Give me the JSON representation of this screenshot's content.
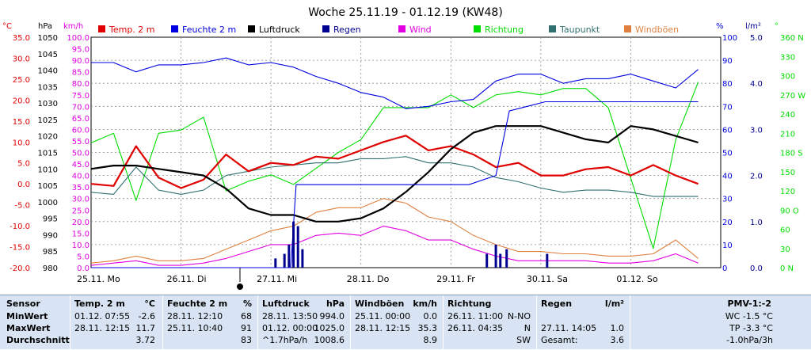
{
  "title": "Woche 25.11.19 - 01.12.19 (KW48)",
  "colors": {
    "temp": "#e00000",
    "humidity": "#0000e0",
    "pressure": "#000000",
    "rain": "#000090",
    "wind": "#e000e0",
    "direction": "#00dd00",
    "dewpoint": "#307070",
    "gust": "#e08040",
    "grid": "#8a8a8a"
  },
  "axes": {
    "temp_unit": "°C",
    "pressure_unit": "hPa",
    "wind_unit": "km/h",
    "humidity_unit": "%",
    "rain_unit": "l/m²",
    "direction_unit": "°",
    "temp_ticks": [
      "35.0",
      "30.0",
      "25.0",
      "20.0",
      "15.0",
      "10.0",
      "5.0",
      "0.0",
      "-5.0",
      "-10.0",
      "-15.0",
      "-20.0"
    ],
    "pressure_ticks": [
      "1050",
      "1045",
      "1040",
      "1035",
      "1030",
      "1025",
      "1020",
      "1015",
      "1010",
      "1005",
      "1000",
      "995",
      "990",
      "985",
      "980"
    ],
    "wind_ticks": [
      "100.0",
      "95.0",
      "90.0",
      "85.0",
      "80.0",
      "75.0",
      "70.0",
      "65.0",
      "60.0",
      "55.0",
      "50.0",
      "45.0",
      "40.0",
      "35.0",
      "30.0",
      "25.0",
      "20.0",
      "15.0",
      "10.0",
      "5.0",
      "0.0"
    ],
    "humidity_ticks": [
      "100",
      "90",
      "80",
      "70",
      "60",
      "50",
      "40",
      "30",
      "20",
      "10",
      "0"
    ],
    "rain_ticks": [
      "5.0",
      "4.0",
      "3.0",
      "2.0",
      "1.0",
      "0.0"
    ],
    "direction_ticks": [
      "360 N",
      "330",
      "300",
      "270 W",
      "240",
      "210",
      "180 S",
      "150",
      "120",
      "90 O",
      "60",
      "30",
      "0 N"
    ],
    "day_labels": [
      "25.11. Mo",
      "26.11. Di",
      "27.11. Mi",
      "28.11. Do",
      "29.11. Fr",
      "30.11. Sa",
      "01.12. So"
    ]
  },
  "legend": [
    {
      "label": "Temp. 2 m",
      "color": "#e00000"
    },
    {
      "label": "Feuchte  2 m",
      "color": "#0000e0"
    },
    {
      "label": "Luftdruck",
      "color": "#000000"
    },
    {
      "label": "Regen",
      "color": "#000090"
    },
    {
      "label": "Wind",
      "color": "#e000e0"
    },
    {
      "label": "Richtung",
      "color": "#00dd00"
    },
    {
      "label": "Taupunkt",
      "color": "#307070"
    },
    {
      "label": "Windböen",
      "color": "#e08040"
    }
  ],
  "chart_data": {
    "type": "line",
    "title": "Woche 25.11.19 - 01.12.19 (KW48)",
    "x": [
      0,
      0.25,
      0.5,
      0.75,
      1,
      1.25,
      1.5,
      1.75,
      2,
      2.25,
      2.5,
      2.75,
      3,
      3.25,
      3.5,
      3.75,
      4,
      4.25,
      4.5,
      4.75,
      5,
      5.25,
      5.5,
      5.75,
      6,
      6.25,
      6.5,
      6.75
    ],
    "xlabels": [
      "25.11. Mo",
      "26.11. Di",
      "27.11. Mi",
      "28.11. Do",
      "29.11. Fr",
      "30.11. Sa",
      "01.12. So"
    ],
    "series": [
      {
        "name": "Temp. 2 m",
        "unit": "°C",
        "values": [
          0,
          -0.5,
          9,
          1.5,
          -1,
          1,
          7,
          3,
          5,
          4.5,
          6.5,
          6,
          8,
          10,
          11.5,
          8,
          9,
          7,
          4,
          5,
          2,
          2,
          3.5,
          4,
          2,
          4.5,
          2,
          0
        ]
      },
      {
        "name": "Feuchte  2 m",
        "unit": "%",
        "values": [
          89,
          89,
          85,
          88,
          88,
          89,
          91,
          88,
          89,
          87,
          83,
          80,
          76,
          74,
          69,
          70,
          72,
          73,
          81,
          84,
          84,
          80,
          82,
          82,
          84,
          81,
          78,
          86
        ]
      },
      {
        "name": "Luftdruck",
        "unit": "hPa",
        "values": [
          1010,
          1011,
          1011,
          1010,
          1009,
          1008,
          1004,
          998,
          996,
          996,
          994,
          994,
          995,
          998,
          1003,
          1009,
          1016,
          1021,
          1023,
          1023,
          1023,
          1021,
          1019,
          1018,
          1023,
          1022,
          1020,
          1018
        ]
      },
      {
        "name": "Wind",
        "unit": "km/h",
        "values": [
          1,
          2,
          3,
          1,
          1,
          2,
          4,
          7,
          10,
          10,
          14,
          15,
          14,
          18,
          16,
          12,
          12,
          8,
          5,
          3,
          3,
          3,
          3,
          2,
          2,
          3,
          6,
          2
        ]
      },
      {
        "name": "Richtung",
        "unit": "°",
        "values": [
          195,
          210,
          105,
          210,
          215,
          235,
          120,
          135,
          145,
          130,
          155,
          180,
          200,
          250,
          250,
          250,
          270,
          250,
          270,
          275,
          270,
          280,
          280,
          250,
          140,
          30,
          200,
          290
        ]
      },
      {
        "name": "Taupunkt",
        "unit": "°C",
        "values": [
          -2,
          -2.5,
          4,
          -1.5,
          -2.5,
          -1.5,
          2,
          3,
          4,
          4.5,
          5,
          5,
          6,
          6,
          6.5,
          5,
          5,
          4,
          1.5,
          0.5,
          -1,
          -2,
          -1.5,
          -1.5,
          -2,
          -3,
          -3,
          -3
        ]
      },
      {
        "name": "Windböen",
        "unit": "km/h",
        "values": [
          2,
          3,
          5,
          3,
          3,
          4,
          8,
          12,
          16,
          18,
          24,
          26,
          26,
          30,
          28,
          22,
          20,
          14,
          10,
          7,
          7,
          6,
          6,
          5,
          5,
          6,
          12,
          4
        ]
      },
      {
        "name": "Regen",
        "unit": "l/m²",
        "bars": [
          [
            2.05,
            0.2
          ],
          [
            2.15,
            0.3
          ],
          [
            2.2,
            0.5
          ],
          [
            2.25,
            1.0
          ],
          [
            2.3,
            0.9
          ],
          [
            2.35,
            0.4
          ],
          [
            4.4,
            0.3
          ],
          [
            4.5,
            0.5
          ],
          [
            4.55,
            0.3
          ],
          [
            4.62,
            0.4
          ],
          [
            5.07,
            0.3
          ]
        ]
      }
    ],
    "levels": [
      {
        "name": "Regen cumulative",
        "unit": "l/m²",
        "points": [
          [
            0,
            0
          ],
          [
            2.22,
            0
          ],
          [
            2.28,
            1.8
          ],
          [
            4.2,
            1.8
          ],
          [
            4.5,
            2.0
          ],
          [
            4.65,
            3.4
          ],
          [
            4.85,
            3.5
          ],
          [
            5.05,
            3.6
          ],
          [
            6.75,
            3.6
          ]
        ]
      }
    ],
    "ylim_temp": [
      -20,
      35
    ],
    "ylim_pressure": [
      980,
      1050
    ],
    "ylim_wind": [
      0,
      100
    ],
    "ylim_humidity": [
      0,
      100
    ],
    "ylim_rain": [
      0,
      5
    ],
    "ylim_direction": [
      0,
      360
    ],
    "grid": true
  },
  "summary": {
    "sensor": {
      "header": "Sensor",
      "rows": [
        "MinWert",
        "MaxWert",
        "Durchschnitt"
      ]
    },
    "temp": {
      "header": "Temp. 2 m",
      "unit": "°C",
      "rows": [
        [
          "01.12. 07:55",
          "-2.6"
        ],
        [
          "28.11. 12:15",
          "11.7"
        ],
        [
          "",
          "3.72"
        ]
      ]
    },
    "humidity": {
      "header": "Feuchte  2 m",
      "unit": "%",
      "rows": [
        [
          "28.11. 12:10",
          "68"
        ],
        [
          "25.11. 10:40",
          "91"
        ],
        [
          "",
          "83"
        ]
      ]
    },
    "pressure": {
      "header": "Luftdruck",
      "unit": "hPa",
      "rows": [
        [
          "28.11. 13:50",
          "994.0"
        ],
        [
          "01.12. 00:00",
          "1025.0"
        ],
        [
          "^1.7hPa/h",
          "1008.6"
        ]
      ]
    },
    "gust": {
      "header": "Windböen",
      "unit": "km/h",
      "rows": [
        [
          "25.11. 00:00",
          "0.0"
        ],
        [
          "28.11. 12:15",
          "35.3"
        ],
        [
          "",
          "8.9"
        ]
      ]
    },
    "direction": {
      "header": "Richtung",
      "unit": "",
      "rows": [
        [
          "26.11. 11:00",
          "N-NO"
        ],
        [
          "26.11. 04:35",
          "N"
        ],
        [
          "",
          "SW"
        ]
      ]
    },
    "rain": {
      "header": "Regen",
      "unit": "l/m²",
      "rows": [
        [
          "",
          ""
        ],
        [
          "27.11. 14:05",
          "1.0"
        ],
        [
          "Gesamt:",
          "3.6"
        ]
      ]
    },
    "pmv": {
      "header": "PMV-1:-2",
      "rows": [
        "WC -1.5 °C",
        "TP -3.3 °C",
        "-1.0hPa/3h"
      ]
    }
  }
}
